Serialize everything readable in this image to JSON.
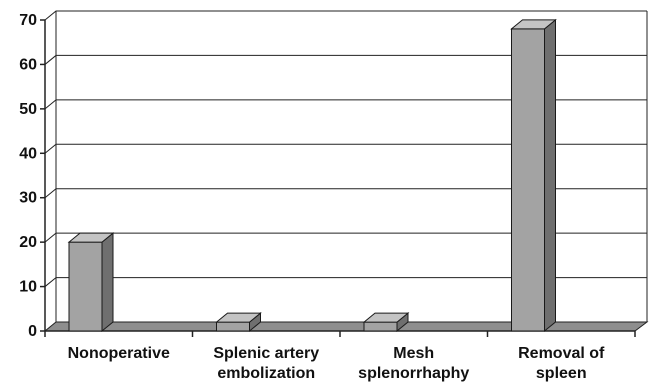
{
  "chart_data": {
    "type": "bar",
    "title": "",
    "xlabel": "",
    "ylabel": "",
    "categories": [
      [
        "Nonoperative"
      ],
      [
        "Splenic artery",
        "embolization"
      ],
      [
        "Mesh",
        "splenorrhaphy"
      ],
      [
        "Removal of",
        "spleen"
      ]
    ],
    "values": [
      20,
      2,
      2,
      68
    ],
    "ylim": [
      0,
      70
    ],
    "yticks": [
      0,
      10,
      20,
      30,
      40,
      50,
      60,
      70
    ],
    "grid": true,
    "legend": "none",
    "style": "3d",
    "colors": {
      "bar_front": "#a3a3a3",
      "bar_top": "#c4c4c4",
      "bar_side": "#6f6f6f",
      "floor": "#8e8e8e",
      "grid": "#222222",
      "axis": "#222222"
    }
  }
}
